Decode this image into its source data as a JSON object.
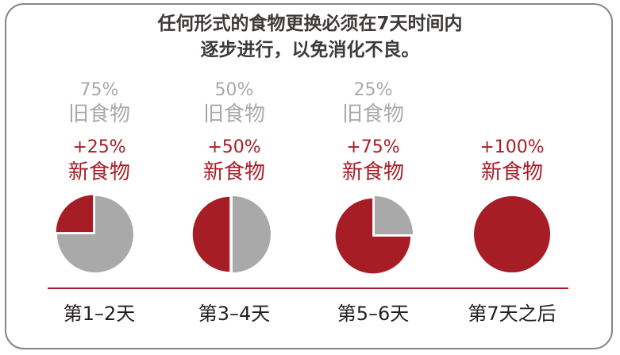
{
  "title": {
    "line1": "任何形式的食物更换必须在7天时间内",
    "line2": "逐步进行，以免消化不良。"
  },
  "colors": {
    "old": "#a9a9a9",
    "new": "#a71d26"
  },
  "stages": [
    {
      "old_pct": "75%",
      "old_label": "旧食物",
      "new_pct": "+25%",
      "new_label": "新食物",
      "new_fraction": 0.25,
      "day": "第1–2天"
    },
    {
      "old_pct": "50%",
      "old_label": "旧食物",
      "new_pct": "+50%",
      "new_label": "新食物",
      "new_fraction": 0.5,
      "day": "第3–4天"
    },
    {
      "old_pct": "25%",
      "old_label": "旧食物",
      "new_pct": "+75%",
      "new_label": "新食物",
      "new_fraction": 0.75,
      "day": "第5–6天"
    },
    {
      "old_pct": "",
      "old_label": "",
      "new_pct": "+100%",
      "new_label": "新食物",
      "new_fraction": 1.0,
      "day": "第7天之后"
    }
  ]
}
